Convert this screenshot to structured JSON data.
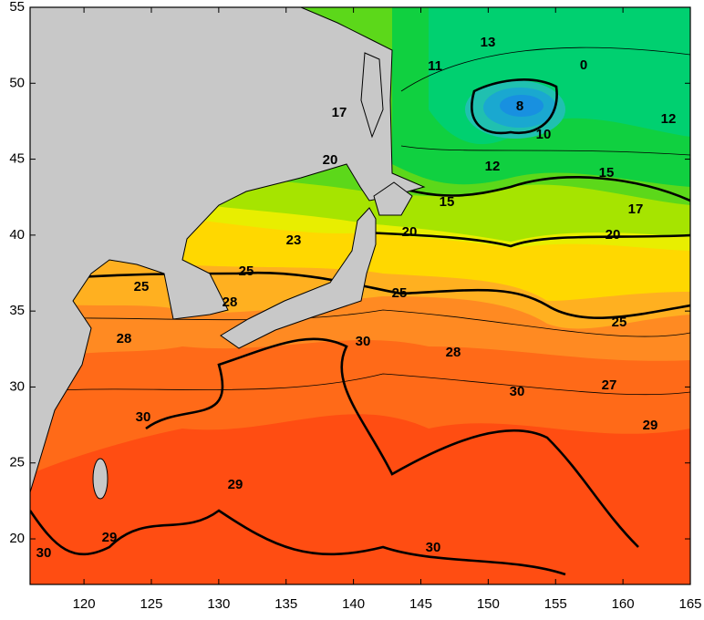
{
  "map": {
    "type": "contour",
    "xlim": [
      116,
      165
    ],
    "ylim": [
      17,
      55
    ],
    "xticks": [
      120,
      125,
      130,
      135,
      140,
      145,
      150,
      155,
      160,
      165
    ],
    "yticks": [
      20,
      25,
      30,
      35,
      40,
      45,
      50,
      55
    ],
    "contour_labels": [
      13,
      11,
      0,
      8,
      10,
      12,
      12,
      17,
      20,
      15,
      15,
      17,
      20,
      20,
      23,
      25,
      25,
      25,
      25,
      28,
      28,
      30,
      28,
      27,
      30,
      30,
      29,
      29,
      29,
      30,
      30
    ]
  }
}
